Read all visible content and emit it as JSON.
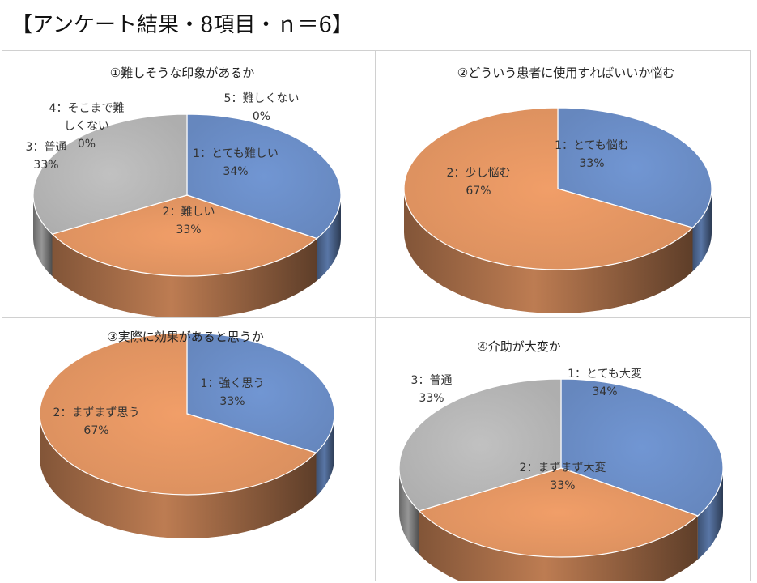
{
  "page": {
    "title": "【アンケート結果・8項目・ｎ＝6】"
  },
  "chart_data": [
    {
      "type": "pie",
      "title": "①難しそうな印象があるか",
      "slices": [
        {
          "label": "1：とても難しい",
          "value": 34,
          "display": "34%",
          "color": "#6f93cf"
        },
        {
          "label": "2：難しい",
          "value": 33,
          "display": "33%",
          "color": "#ec9b66"
        },
        {
          "label": "3：普通",
          "value": 33,
          "display": "33%",
          "color": "#bdbdbd"
        },
        {
          "label": "4：そこまで難しくない",
          "value": 0,
          "display": "0%",
          "color": "#f2c24e"
        },
        {
          "label": "5：難しくない",
          "value": 0,
          "display": "0%",
          "color": "#5b9bd5"
        }
      ]
    },
    {
      "type": "pie",
      "title": "②どういう患者に使用すればいいか悩む",
      "slices": [
        {
          "label": "1：とても悩む",
          "value": 33,
          "display": "33%",
          "color": "#6f93cf"
        },
        {
          "label": "2：少し悩む",
          "value": 67,
          "display": "67%",
          "color": "#ec9b66"
        }
      ]
    },
    {
      "type": "pie",
      "title": "③実際に効果があると思うか",
      "slices": [
        {
          "label": "1：強く思う",
          "value": 33,
          "display": "33%",
          "color": "#6f93cf"
        },
        {
          "label": "2：まずまず思う",
          "value": 67,
          "display": "67%",
          "color": "#ec9b66"
        }
      ]
    },
    {
      "type": "pie",
      "title": "④介助が大変か",
      "slices": [
        {
          "label": "1：とても大変",
          "value": 34,
          "display": "34%",
          "color": "#6f93cf"
        },
        {
          "label": "2：まずまず大変",
          "value": 33,
          "display": "33%",
          "color": "#ec9b66"
        },
        {
          "label": "3：普通",
          "value": 33,
          "display": "33%",
          "color": "#bdbdbd"
        }
      ]
    }
  ]
}
